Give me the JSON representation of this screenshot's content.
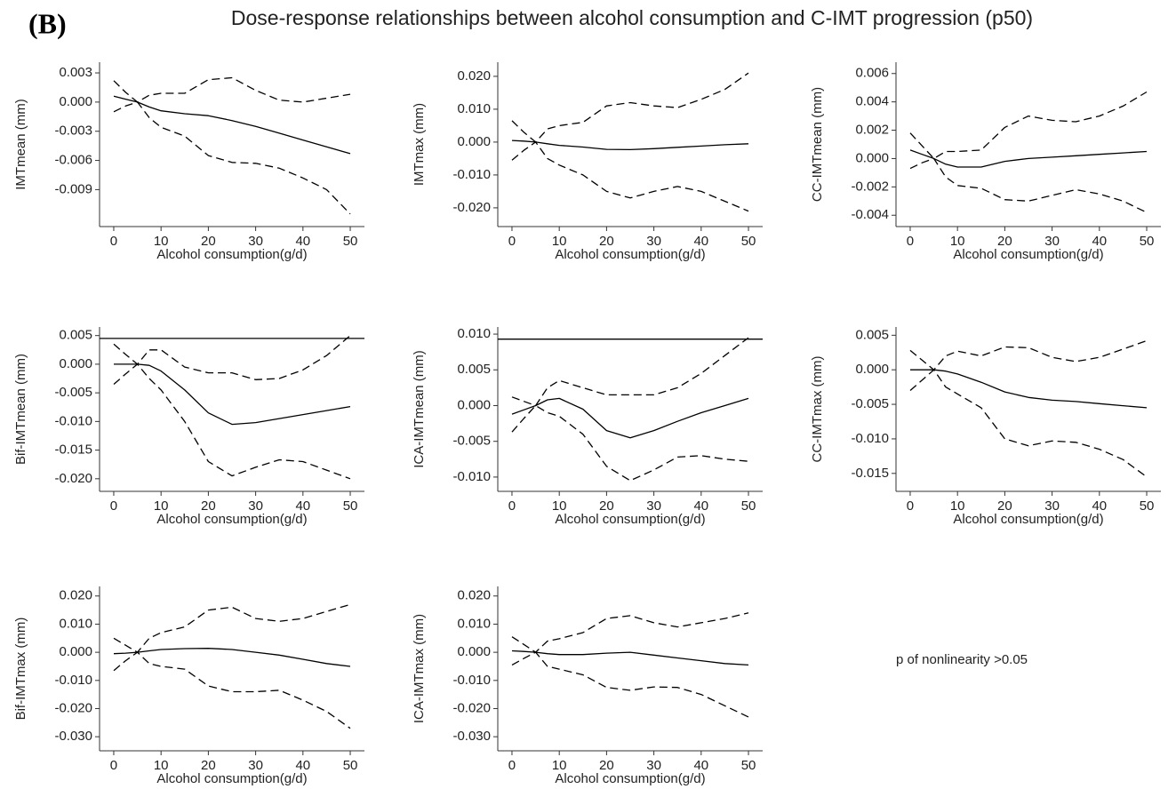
{
  "figure_label": "(B)",
  "title": "Dose-response relationships between alcohol consumption and C-IMT progression (p50)",
  "annotation": "p of nonlinearity >0.05",
  "chart_data": [
    {
      "type": "line",
      "ylabel": "IMTmean (mm)",
      "xlabel": "Alcohol consumption(g/d)",
      "x": [
        0,
        2.5,
        5,
        7.5,
        10,
        15,
        20,
        25,
        30,
        35,
        40,
        45,
        50
      ],
      "xlim": [
        -3,
        53
      ],
      "xticks": [
        0,
        10,
        20,
        30,
        40,
        50
      ],
      "ylim": [
        -0.0128,
        0.0041
      ],
      "yticks": [
        {
          "value": -0.009,
          "label": "-0.009"
        },
        {
          "value": -0.006,
          "label": "-0.006"
        },
        {
          "value": -0.003,
          "label": "-0.003"
        },
        {
          "value": 0,
          "label": "0.000"
        },
        {
          "value": 0.003,
          "label": "0.003"
        }
      ],
      "series": [
        {
          "color": "#000000",
          "dash": false,
          "values": [
            0.0006,
            0.0003,
            0,
            -0.0005,
            -0.0009,
            -0.0012,
            -0.0014,
            -0.0019,
            -0.0025,
            -0.0032,
            -0.0039,
            -0.0046,
            -0.0053
          ]
        },
        {
          "color": "#000000",
          "dash": true,
          "values": [
            0.0022,
            0.001,
            0,
            0.0007,
            0.0009,
            0.0009,
            0.0023,
            0.0025,
            0.0012,
            0.0002,
            0,
            0.0004,
            0.0008
          ]
        },
        {
          "color": "#000000",
          "dash": true,
          "values": [
            -0.001,
            -0.0004,
            0,
            -0.0016,
            -0.0026,
            -0.0035,
            -0.0055,
            -0.0062,
            -0.0063,
            -0.0068,
            -0.0078,
            -0.009,
            -0.0115
          ]
        }
      ]
    },
    {
      "type": "line",
      "ylabel": "IMTmax (mm)",
      "xlabel": "Alcohol consumption(g/d)",
      "x": [
        0,
        2.5,
        5,
        7.5,
        10,
        15,
        20,
        25,
        30,
        35,
        40,
        45,
        50
      ],
      "xlim": [
        -3,
        53
      ],
      "xticks": [
        0,
        10,
        20,
        30,
        40,
        50
      ],
      "ylim": [
        -0.0257,
        0.0243
      ],
      "yticks": [
        {
          "value": -0.02,
          "label": "-0.020"
        },
        {
          "value": -0.01,
          "label": "-0.010"
        },
        {
          "value": 0,
          "label": "0.000"
        },
        {
          "value": 0.01,
          "label": "0.010"
        },
        {
          "value": 0.02,
          "label": "0.020"
        }
      ],
      "series": [
        {
          "color": "#000000",
          "dash": false,
          "values": [
            0.0005,
            0.0003,
            0,
            -0.0005,
            -0.001,
            -0.0015,
            -0.0022,
            -0.0023,
            -0.002,
            -0.0016,
            -0.0012,
            -0.0008,
            -0.0005
          ]
        },
        {
          "color": "#000000",
          "dash": true,
          "values": [
            0.0065,
            0.003,
            0,
            0.004,
            0.005,
            0.006,
            0.011,
            0.012,
            0.011,
            0.0105,
            0.013,
            0.016,
            0.021
          ]
        },
        {
          "color": "#000000",
          "dash": true,
          "values": [
            -0.0055,
            -0.0025,
            0,
            -0.005,
            -0.007,
            -0.01,
            -0.015,
            -0.017,
            -0.015,
            -0.0135,
            -0.015,
            -0.018,
            -0.021
          ]
        }
      ]
    },
    {
      "type": "line",
      "ylabel": "CC-IMTmean (mm)",
      "xlabel": "Alcohol consumption(g/d)",
      "x": [
        0,
        2.5,
        5,
        7.5,
        10,
        15,
        20,
        25,
        30,
        35,
        40,
        45,
        50
      ],
      "xlim": [
        -3,
        53
      ],
      "xticks": [
        0,
        10,
        20,
        30,
        40,
        50
      ],
      "ylim": [
        -0.0048,
        0.0068
      ],
      "yticks": [
        {
          "value": -0.004,
          "label": "-0.004"
        },
        {
          "value": -0.002,
          "label": "-0.002"
        },
        {
          "value": 0,
          "label": "0.000"
        },
        {
          "value": 0.002,
          "label": "0.002"
        },
        {
          "value": 0.004,
          "label": "0.004"
        },
        {
          "value": 0.006,
          "label": "0.006"
        }
      ],
      "series": [
        {
          "color": "#000000",
          "dash": false,
          "values": [
            0.0006,
            0.0003,
            0,
            -0.0004,
            -0.0006,
            -0.0006,
            -0.0002,
            0,
            0.0001,
            0.0002,
            0.0003,
            0.0004,
            0.0005
          ]
        },
        {
          "color": "#000000",
          "dash": true,
          "values": [
            0.0018,
            0.0009,
            0,
            0.0005,
            0.0005,
            0.0006,
            0.0022,
            0.003,
            0.0027,
            0.0026,
            0.003,
            0.0037,
            0.0047
          ]
        },
        {
          "color": "#000000",
          "dash": true,
          "values": [
            -0.0007,
            -0.0003,
            0,
            -0.0013,
            -0.0019,
            -0.0021,
            -0.0029,
            -0.003,
            -0.0026,
            -0.0022,
            -0.0025,
            -0.003,
            -0.0038
          ]
        }
      ]
    },
    {
      "type": "line",
      "ylabel": "Bif-IMTmean (mm)",
      "xlabel": "Alcohol consumption(g/d)",
      "x": [
        0,
        2.5,
        5,
        7.5,
        10,
        15,
        20,
        25,
        30,
        35,
        40,
        45,
        50
      ],
      "xlim": [
        -3,
        53
      ],
      "xticks": [
        0,
        10,
        20,
        30,
        40,
        50
      ],
      "ylim": [
        -0.0222,
        0.0065
      ],
      "hline": 0.0045,
      "yticks": [
        {
          "value": -0.02,
          "label": "-0.020"
        },
        {
          "value": -0.015,
          "label": "-0.015"
        },
        {
          "value": -0.01,
          "label": "-0.010"
        },
        {
          "value": -0.005,
          "label": "-0.005"
        },
        {
          "value": 0,
          "label": "0.000"
        },
        {
          "value": 0.005,
          "label": "0.005"
        }
      ],
      "series": [
        {
          "color": "#000000",
          "dash": false,
          "values": [
            0,
            0,
            0,
            -0.0002,
            -0.0012,
            -0.0045,
            -0.0085,
            -0.0105,
            -0.0102,
            -0.0095,
            -0.0088,
            -0.0081,
            -0.0074
          ]
        },
        {
          "color": "#000000",
          "dash": true,
          "values": [
            0.0035,
            0.0017,
            0,
            0.0025,
            0.0025,
            -0.0005,
            -0.0015,
            -0.0015,
            -0.0027,
            -0.0025,
            -0.001,
            0.0015,
            0.005
          ]
        },
        {
          "color": "#000000",
          "dash": true,
          "values": [
            -0.0035,
            -0.0017,
            0,
            -0.0025,
            -0.0045,
            -0.01,
            -0.017,
            -0.0195,
            -0.018,
            -0.0167,
            -0.017,
            -0.0185,
            -0.02
          ]
        }
      ]
    },
    {
      "type": "line",
      "ylabel": "ICA-IMTmean (mm)",
      "xlabel": "Alcohol consumption(g/d)",
      "x": [
        0,
        2.5,
        5,
        7.5,
        10,
        15,
        20,
        25,
        30,
        35,
        40,
        45,
        50
      ],
      "xlim": [
        -3,
        53
      ],
      "xticks": [
        0,
        10,
        20,
        30,
        40,
        50
      ],
      "ylim": [
        -0.012,
        0.011
      ],
      "hline": 0.0093,
      "yticks": [
        {
          "value": -0.01,
          "label": "-0.010"
        },
        {
          "value": -0.005,
          "label": "-0.005"
        },
        {
          "value": 0,
          "label": "0.000"
        },
        {
          "value": 0.005,
          "label": "0.005"
        },
        {
          "value": 0.01,
          "label": "0.010"
        }
      ],
      "series": [
        {
          "color": "#000000",
          "dash": false,
          "values": [
            -0.0012,
            -0.0006,
            0,
            0.0008,
            0.001,
            -0.0005,
            -0.0035,
            -0.0045,
            -0.0035,
            -0.0022,
            -0.001,
            0,
            0.001
          ]
        },
        {
          "color": "#000000",
          "dash": true,
          "values": [
            0.0012,
            0.0006,
            0,
            0.0025,
            0.0035,
            0.0025,
            0.0015,
            0.0015,
            0.0015,
            0.0025,
            0.0045,
            0.007,
            0.0095
          ]
        },
        {
          "color": "#000000",
          "dash": true,
          "values": [
            -0.0037,
            -0.0018,
            0,
            -0.001,
            -0.0015,
            -0.004,
            -0.0085,
            -0.0105,
            -0.009,
            -0.0072,
            -0.007,
            -0.0075,
            -0.0078
          ]
        }
      ]
    },
    {
      "type": "line",
      "ylabel": "CC-IMTmax (mm)",
      "xlabel": "Alcohol consumption(g/d)",
      "x": [
        0,
        2.5,
        5,
        7.5,
        10,
        15,
        20,
        25,
        30,
        35,
        40,
        45,
        50
      ],
      "xlim": [
        -3,
        53
      ],
      "xticks": [
        0,
        10,
        20,
        30,
        40,
        50
      ],
      "ylim": [
        -0.0176,
        0.0062
      ],
      "yticks": [
        {
          "value": -0.015,
          "label": "-0.015"
        },
        {
          "value": -0.01,
          "label": "-0.010"
        },
        {
          "value": -0.005,
          "label": "-0.005"
        },
        {
          "value": 0,
          "label": "0.000"
        },
        {
          "value": 0.005,
          "label": "0.005"
        }
      ],
      "series": [
        {
          "color": "#000000",
          "dash": false,
          "values": [
            0,
            0,
            0,
            -0.0002,
            -0.0006,
            -0.0018,
            -0.0032,
            -0.004,
            -0.0044,
            -0.0046,
            -0.0049,
            -0.0052,
            -0.0055
          ]
        },
        {
          "color": "#000000",
          "dash": true,
          "values": [
            0.0028,
            0.0014,
            0,
            0.002,
            0.0027,
            0.002,
            0.0033,
            0.0032,
            0.0018,
            0.0012,
            0.0018,
            0.003,
            0.0042
          ]
        },
        {
          "color": "#000000",
          "dash": true,
          "values": [
            -0.003,
            -0.0015,
            0,
            -0.0025,
            -0.0035,
            -0.0055,
            -0.01,
            -0.011,
            -0.0103,
            -0.0105,
            -0.0115,
            -0.013,
            -0.0155
          ]
        }
      ]
    },
    {
      "type": "line",
      "ylabel": "Bif-IMTmax (mm)",
      "xlabel": "Alcohol consumption(g/d)",
      "x": [
        0,
        2.5,
        5,
        7.5,
        10,
        15,
        20,
        25,
        30,
        35,
        40,
        45,
        50
      ],
      "xlim": [
        -3,
        53
      ],
      "xticks": [
        0,
        10,
        20,
        30,
        40,
        50
      ],
      "ylim": [
        -0.035,
        0.0234
      ],
      "yticks": [
        {
          "value": -0.03,
          "label": "-0.030"
        },
        {
          "value": -0.02,
          "label": "-0.020"
        },
        {
          "value": -0.01,
          "label": "-0.010"
        },
        {
          "value": 0,
          "label": "0.000"
        },
        {
          "value": 0.01,
          "label": "0.010"
        },
        {
          "value": 0.02,
          "label": "0.020"
        }
      ],
      "series": [
        {
          "color": "#000000",
          "dash": false,
          "values": [
            -0.0005,
            -0.0003,
            0,
            0.0005,
            0.001,
            0.0013,
            0.0014,
            0.001,
            0,
            -0.001,
            -0.0025,
            -0.004,
            -0.005
          ]
        },
        {
          "color": "#000000",
          "dash": true,
          "values": [
            0.005,
            0.0025,
            0,
            0.005,
            0.007,
            0.009,
            0.015,
            0.016,
            0.012,
            0.011,
            0.012,
            0.0145,
            0.017
          ]
        },
        {
          "color": "#000000",
          "dash": true,
          "values": [
            -0.0065,
            -0.003,
            0,
            -0.004,
            -0.005,
            -0.006,
            -0.012,
            -0.014,
            -0.014,
            -0.0135,
            -0.017,
            -0.021,
            -0.027
          ]
        }
      ]
    },
    {
      "type": "line",
      "ylabel": "ICA-IMTmax (mm)",
      "xlabel": "Alcohol consumption(g/d)",
      "x": [
        0,
        2.5,
        5,
        7.5,
        10,
        15,
        20,
        25,
        30,
        35,
        40,
        45,
        50
      ],
      "xlim": [
        -3,
        53
      ],
      "xticks": [
        0,
        10,
        20,
        30,
        40,
        50
      ],
      "ylim": [
        -0.035,
        0.0234
      ],
      "yticks": [
        {
          "value": -0.03,
          "label": "-0.030"
        },
        {
          "value": -0.02,
          "label": "-0.020"
        },
        {
          "value": -0.01,
          "label": "-0.010"
        },
        {
          "value": 0,
          "label": "0.000"
        },
        {
          "value": 0.01,
          "label": "0.010"
        },
        {
          "value": 0.02,
          "label": "0.020"
        }
      ],
      "series": [
        {
          "color": "#000000",
          "dash": false,
          "values": [
            0.0005,
            0.0003,
            0,
            -0.0005,
            -0.0008,
            -0.0008,
            -0.0003,
            0,
            -0.001,
            -0.002,
            -0.003,
            -0.004,
            -0.0045
          ]
        },
        {
          "color": "#000000",
          "dash": true,
          "values": [
            0.0055,
            0.0028,
            0,
            0.004,
            0.0048,
            0.007,
            0.012,
            0.013,
            0.0105,
            0.009,
            0.0105,
            0.012,
            0.014
          ]
        },
        {
          "color": "#000000",
          "dash": true,
          "values": [
            -0.0045,
            -0.0022,
            0,
            -0.005,
            -0.006,
            -0.008,
            -0.0125,
            -0.0135,
            -0.0123,
            -0.0125,
            -0.015,
            -0.019,
            -0.023
          ]
        }
      ]
    }
  ]
}
